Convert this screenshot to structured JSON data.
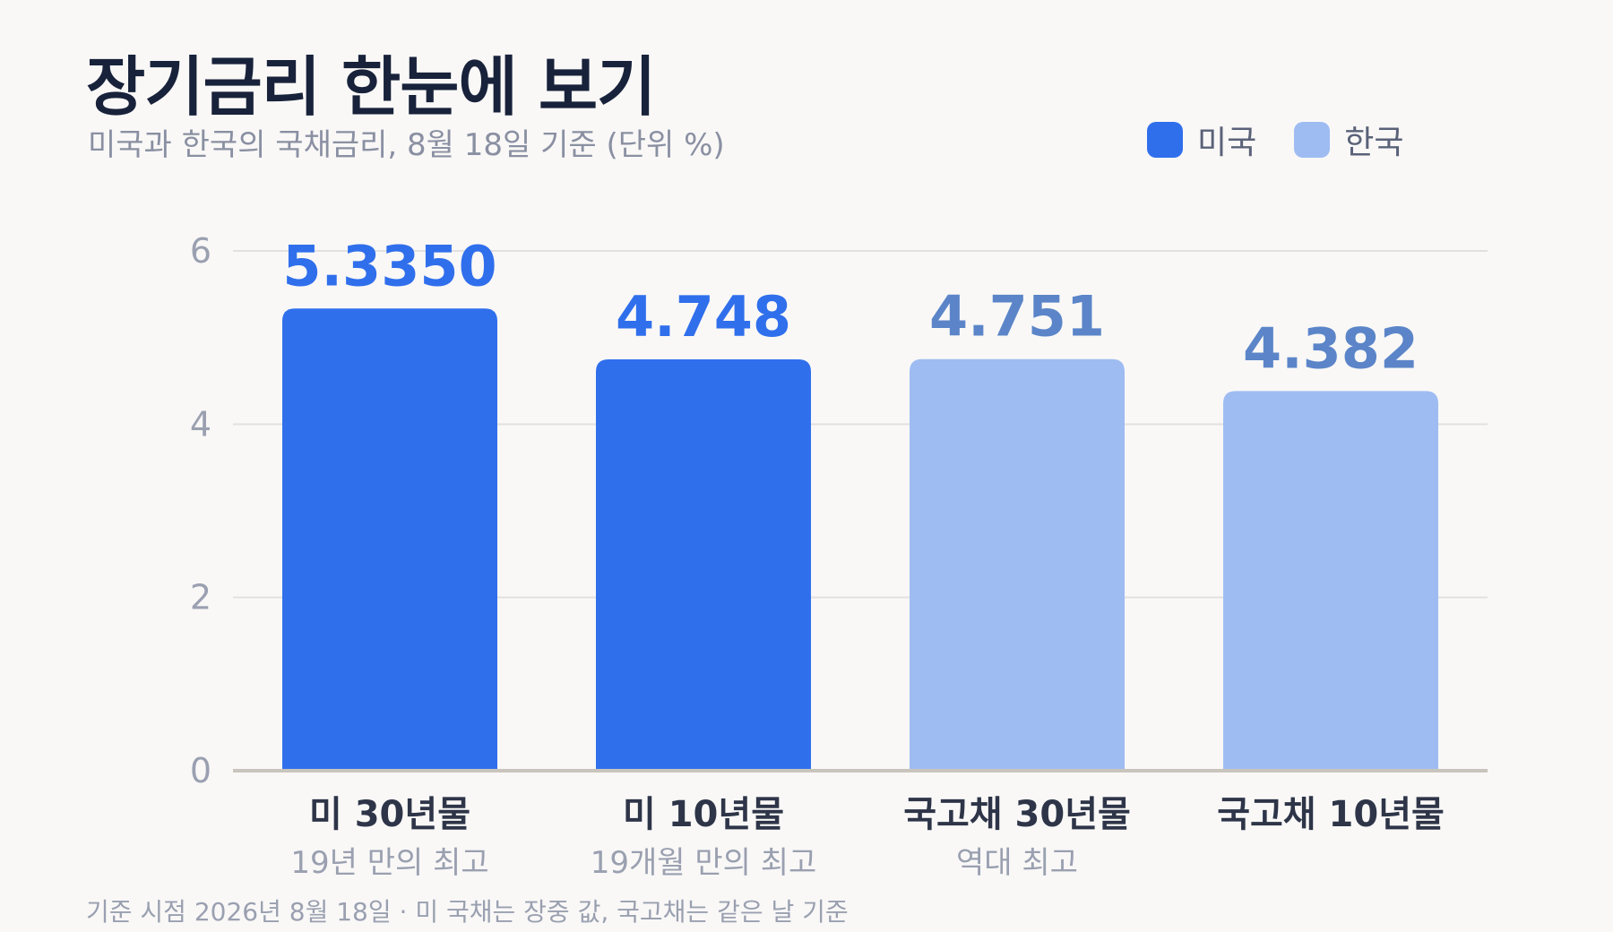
{
  "title": "장기금리 한눈에 보기",
  "subtitle": "미국과 한국의 국채금리, 8월 18일 기준 (단위 %)",
  "legend": [
    {
      "label": "미국",
      "color": "#306fec"
    },
    {
      "label": "한국",
      "color": "#9ebcf2"
    }
  ],
  "footnote": "기준 시점 2026년 8월 18일 · 미 국채는 장중 값, 국고채는 같은 날 기준",
  "chart_data": {
    "type": "bar",
    "title": "장기금리 한눈에 보기",
    "subtitle": "미국과 한국의 국채금리, 8월 18일 기준 (단위 %)",
    "categories": [
      "미 30년물",
      "미 10년물",
      "국고채 30년물",
      "국고채 10년물"
    ],
    "sublabels": [
      "19년 만의 최고",
      "19개월 만의 최고",
      "역대 최고",
      ""
    ],
    "values": [
      5.335,
      4.748,
      4.751,
      4.382
    ],
    "value_labels": [
      "5.3350",
      "4.748",
      "4.751",
      "4.382"
    ],
    "groups": [
      "미국",
      "미국",
      "한국",
      "한국"
    ],
    "colors": {
      "미국": {
        "bar": "#306fec",
        "label": "#306fec"
      },
      "한국": {
        "bar": "#9ebcf2",
        "label": "#5b85c8"
      }
    },
    "ylim": [
      0,
      6
    ],
    "yticks": [
      0,
      2,
      4,
      6
    ],
    "grid": true,
    "legend_position": "top-right",
    "xlabel": "",
    "ylabel": ""
  }
}
